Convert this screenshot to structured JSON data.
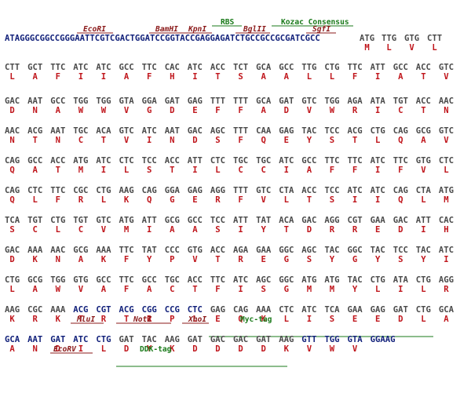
{
  "colors": {
    "dna_default": "#4a4a4a",
    "dna_vector": "#11207a",
    "amino_acid": "#c0161c",
    "site_label": "#8b1a1a",
    "feature_label": "#1a7a1a"
  },
  "header": {
    "feature_labels": [
      {
        "text": "RBS",
        "kind": "feature"
      },
      {
        "text": "Kozac Consensus",
        "kind": "feature"
      },
      {
        "text": "EcoRI",
        "kind": "site"
      },
      {
        "text": "BamHI",
        "kind": "site"
      },
      {
        "text": "KpnI",
        "kind": "site"
      },
      {
        "text": "BglII",
        "kind": "site"
      },
      {
        "text": "SgfI",
        "kind": "site"
      }
    ],
    "leader": "ATAGGGCGGCCGGGAATTCGTCGACTGGATCCGGTACCGAGGAGATCTGCCGCCGCGATCGCC",
    "codons": [
      "ATG",
      "TTG",
      "GTG",
      "CTT"
    ],
    "aas": [
      "M",
      "L",
      "V",
      "L"
    ]
  },
  "lines": [
    {
      "codons": [
        "CTT",
        "GCT",
        "TTC",
        "ATC",
        "ATC",
        "GCC",
        "TTC",
        "CAC",
        "ATC",
        "ACC",
        "TCT",
        "GCA",
        "GCC",
        "TTG",
        "CTG",
        "TTC",
        "ATT",
        "GCC",
        "ACC",
        "GTC"
      ],
      "aas": [
        "L",
        "A",
        "F",
        "I",
        "I",
        "A",
        "F",
        "H",
        "I",
        "T",
        "S",
        "A",
        "A",
        "L",
        "L",
        "F",
        "I",
        "A",
        "T",
        "V"
      ]
    },
    {
      "codons": [
        "GAC",
        "AAT",
        "GCC",
        "TGG",
        "TGG",
        "GTA",
        "GGA",
        "GAT",
        "GAG",
        "TTT",
        "TTT",
        "GCA",
        "GAT",
        "GTC",
        "TGG",
        "AGA",
        "ATA",
        "TGT",
        "ACC",
        "AAC"
      ],
      "aas": [
        "D",
        "N",
        "A",
        "W",
        "W",
        "V",
        "G",
        "D",
        "E",
        "F",
        "F",
        "A",
        "D",
        "V",
        "W",
        "R",
        "I",
        "C",
        "T",
        "N"
      ]
    },
    {
      "codons": [
        "AAC",
        "ACG",
        "AAT",
        "TGC",
        "ACA",
        "GTC",
        "ATC",
        "AAT",
        "GAC",
        "AGC",
        "TTT",
        "CAA",
        "GAG",
        "TAC",
        "TCC",
        "ACG",
        "CTG",
        "CAG",
        "GCG",
        "GTC"
      ],
      "aas": [
        "N",
        "T",
        "N",
        "C",
        "T",
        "V",
        "I",
        "N",
        "D",
        "S",
        "F",
        "Q",
        "E",
        "Y",
        "S",
        "T",
        "L",
        "Q",
        "A",
        "V"
      ]
    },
    {
      "codons": [
        "CAG",
        "GCC",
        "ACC",
        "ATG",
        "ATC",
        "CTC",
        "TCC",
        "ACC",
        "ATT",
        "CTC",
        "TGC",
        "TGC",
        "ATC",
        "GCC",
        "TTC",
        "TTC",
        "ATC",
        "TTC",
        "GTG",
        "CTC"
      ],
      "aas": [
        "Q",
        "A",
        "T",
        "M",
        "I",
        "L",
        "S",
        "T",
        "I",
        "L",
        "C",
        "C",
        "I",
        "A",
        "F",
        "F",
        "I",
        "F",
        "V",
        "L"
      ]
    },
    {
      "codons": [
        "CAG",
        "CTC",
        "TTC",
        "CGC",
        "CTG",
        "AAG",
        "CAG",
        "GGA",
        "GAG",
        "AGG",
        "TTT",
        "GTC",
        "CTA",
        "ACC",
        "TCC",
        "ATC",
        "ATC",
        "CAG",
        "CTA",
        "ATG"
      ],
      "aas": [
        "Q",
        "L",
        "F",
        "R",
        "L",
        "K",
        "Q",
        "G",
        "E",
        "R",
        "F",
        "V",
        "L",
        "T",
        "S",
        "I",
        "I",
        "Q",
        "L",
        "M"
      ]
    },
    {
      "codons": [
        "TCA",
        "TGT",
        "CTG",
        "TGT",
        "GTC",
        "ATG",
        "ATT",
        "GCG",
        "GCC",
        "TCC",
        "ATT",
        "TAT",
        "ACA",
        "GAC",
        "AGG",
        "CGT",
        "GAA",
        "GAC",
        "ATT",
        "CAC"
      ],
      "aas": [
        "S",
        "C",
        "L",
        "C",
        "V",
        "M",
        "I",
        "A",
        "A",
        "S",
        "I",
        "Y",
        "T",
        "D",
        "R",
        "R",
        "E",
        "D",
        "I",
        "H"
      ]
    },
    {
      "codons": [
        "GAC",
        "AAA",
        "AAC",
        "GCG",
        "AAA",
        "TTC",
        "TAT",
        "CCC",
        "GTG",
        "ACC",
        "AGA",
        "GAA",
        "GGC",
        "AGC",
        "TAC",
        "GGC",
        "TAC",
        "TCC",
        "TAC",
        "ATC"
      ],
      "aas": [
        "D",
        "K",
        "N",
        "A",
        "K",
        "F",
        "Y",
        "P",
        "V",
        "T",
        "R",
        "E",
        "G",
        "S",
        "Y",
        "G",
        "Y",
        "S",
        "Y",
        "I"
      ]
    },
    {
      "codons": [
        "CTG",
        "GCG",
        "TGG",
        "GTG",
        "GCC",
        "TTC",
        "GCC",
        "TGC",
        "ACC",
        "TTC",
        "ATC",
        "AGC",
        "GGC",
        "ATG",
        "ATG",
        "TAC",
        "CTG",
        "ATA",
        "CTG",
        "AGG"
      ],
      "aas": [
        "L",
        "A",
        "W",
        "V",
        "A",
        "F",
        "A",
        "C",
        "T",
        "F",
        "I",
        "S",
        "G",
        "M",
        "M",
        "Y",
        "L",
        "I",
        "L",
        "R"
      ]
    },
    {
      "codons": [
        "AAG",
        "CGC",
        "AAA",
        "ACG",
        "CGT",
        "ACG",
        "CGG",
        "CCG",
        "CTC",
        "GAG",
        "CAG",
        "AAA",
        "CTC",
        "ATC",
        "TCA",
        "GAA",
        "GAG",
        "GAT",
        "CTG",
        "GCA"
      ],
      "aas": [
        "K",
        "R",
        "K",
        "T",
        "R",
        "T",
        "R",
        "P",
        "L",
        "E",
        "Q",
        "K",
        "L",
        "I",
        "S",
        "E",
        "E",
        "D",
        "L",
        "A"
      ],
      "labels": [
        {
          "text": "MluI",
          "kind": "site"
        },
        {
          "text": "NotI",
          "kind": "site"
        },
        {
          "text": "XhoI",
          "kind": "site"
        },
        {
          "text": "Myc-tag",
          "kind": "feature"
        }
      ]
    },
    {
      "codons": [
        "GCA",
        "AAT",
        "GAT",
        "ATC",
        "CTG",
        "GAT",
        "TAC",
        "AAG",
        "GAT",
        "GAC",
        "GAC",
        "GAT",
        "AAG",
        "GTT",
        "TGG",
        "GTA",
        "GGAAG"
      ],
      "aas": [
        "A",
        "N",
        "D",
        "I",
        "L",
        "D",
        "Y",
        "K",
        "D",
        "D",
        "D",
        "D",
        "K",
        "V",
        "W",
        "V",
        ""
      ],
      "labels": [
        {
          "text": "EcoRV",
          "kind": "site"
        },
        {
          "text": "DDK-tag",
          "kind": "feature"
        }
      ]
    }
  ]
}
